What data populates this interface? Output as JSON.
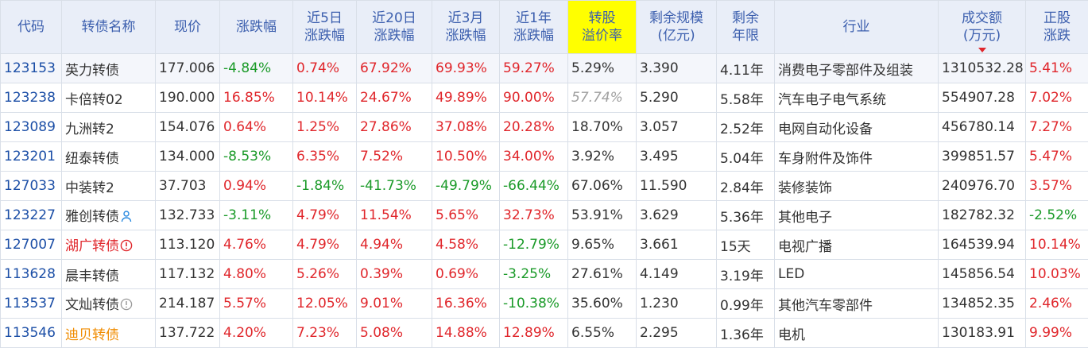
{
  "columns": [
    {
      "key": "code",
      "lines": [
        "代码"
      ]
    },
    {
      "key": "name",
      "lines": [
        "转债名称"
      ]
    },
    {
      "key": "price",
      "lines": [
        "现价"
      ]
    },
    {
      "key": "chg",
      "lines": [
        "涨跌幅"
      ]
    },
    {
      "key": "chg5",
      "lines": [
        "近5日",
        "涨跌幅"
      ]
    },
    {
      "key": "chg20",
      "lines": [
        "近20日",
        "涨跌幅"
      ]
    },
    {
      "key": "chg3m",
      "lines": [
        "近3月",
        "涨跌幅"
      ]
    },
    {
      "key": "chg1y",
      "lines": [
        "近1年",
        "涨跌幅"
      ]
    },
    {
      "key": "premium",
      "lines": [
        "转股",
        "溢价率"
      ],
      "highlight": true
    },
    {
      "key": "scale",
      "lines": [
        "剩余规模",
        "(亿元)"
      ]
    },
    {
      "key": "term",
      "lines": [
        "剩余",
        "年限"
      ]
    },
    {
      "key": "industry",
      "lines": [
        "行业"
      ]
    },
    {
      "key": "volume",
      "lines": [
        "成交额",
        "(万元)"
      ],
      "sorted": "desc"
    },
    {
      "key": "stockchg",
      "lines": [
        "正股",
        "涨跌"
      ]
    }
  ],
  "rows": [
    {
      "code": "123153",
      "name": "英力转债",
      "price": "177.006",
      "chg": "-4.84%",
      "chg5": "0.74%",
      "chg20": "67.92%",
      "chg3m": "69.93%",
      "chg1y": "59.27%",
      "premium": "5.29%",
      "scale": "3.390",
      "term": "4.11年",
      "industry": "消费电子零部件及组装",
      "volume": "1310532.28",
      "stockchg": "5.41%"
    },
    {
      "code": "123238",
      "name": "卡倍转02",
      "price": "190.000",
      "chg": "16.85%",
      "chg5": "10.14%",
      "chg20": "24.67%",
      "chg3m": "49.89%",
      "chg1y": "90.00%",
      "premium": "57.74%",
      "premium_style": "greyital",
      "scale": "5.290",
      "term": "5.58年",
      "industry": "汽车电子电气系统",
      "volume": "554907.28",
      "stockchg": "7.02%"
    },
    {
      "code": "123089",
      "name": "九洲转2",
      "price": "154.076",
      "chg": "0.64%",
      "chg5": "1.25%",
      "chg20": "27.86%",
      "chg3m": "37.08%",
      "chg1y": "20.28%",
      "premium": "18.70%",
      "scale": "3.057",
      "term": "2.52年",
      "industry": "电网自动化设备",
      "volume": "456780.14",
      "stockchg": "7.27%"
    },
    {
      "code": "123201",
      "name": "纽泰转债",
      "price": "134.000",
      "chg": "-8.53%",
      "chg5": "6.35%",
      "chg20": "7.52%",
      "chg3m": "10.50%",
      "chg1y": "34.00%",
      "premium": "3.92%",
      "scale": "3.495",
      "term": "5.04年",
      "industry": "车身附件及饰件",
      "volume": "399851.57",
      "stockchg": "5.47%"
    },
    {
      "code": "127033",
      "name": "中装转2",
      "price": "37.703",
      "chg": "0.94%",
      "chg5": "-1.84%",
      "chg20": "-41.73%",
      "chg3m": "-49.79%",
      "chg1y": "-66.44%",
      "premium": "67.06%",
      "scale": "11.590",
      "term": "2.84年",
      "industry": "装修装饰",
      "volume": "240976.70",
      "stockchg": "3.57%"
    },
    {
      "code": "123227",
      "name": "雅创转债",
      "name_icon": "person-icon",
      "price": "132.733",
      "chg": "-3.11%",
      "chg5": "4.79%",
      "chg20": "11.54%",
      "chg3m": "5.65%",
      "chg1y": "32.73%",
      "premium": "53.91%",
      "scale": "3.629",
      "term": "5.36年",
      "industry": "其他电子",
      "volume": "182782.32",
      "stockchg": "-2.52%"
    },
    {
      "code": "127007",
      "name": "湖广转债",
      "name_color": "red",
      "name_icon": "alert-icon",
      "price": "113.120",
      "chg": "4.76%",
      "chg5": "4.79%",
      "chg20": "4.94%",
      "chg3m": "4.58%",
      "chg1y": "-12.79%",
      "premium": "9.65%",
      "scale": "3.661",
      "term": "15天",
      "industry": "电视广播",
      "volume": "164539.94",
      "stockchg": "10.14%"
    },
    {
      "code": "113628",
      "name": "晨丰转债",
      "price": "117.132",
      "chg": "4.80%",
      "chg5": "5.26%",
      "chg20": "0.39%",
      "chg3m": "0.69%",
      "chg1y": "-3.25%",
      "premium": "27.61%",
      "scale": "4.149",
      "term": "3.19年",
      "industry": "LED",
      "volume": "145856.54",
      "stockchg": "10.03%"
    },
    {
      "code": "113537",
      "name": "文灿转债",
      "name_icon": "info-icon",
      "price": "214.187",
      "chg": "5.57%",
      "chg5": "12.05%",
      "chg20": "9.01%",
      "chg3m": "16.36%",
      "chg1y": "-10.38%",
      "premium": "35.60%",
      "scale": "1.230",
      "term": "0.99年",
      "industry": "其他汽车零部件",
      "volume": "134852.35",
      "stockchg": "2.46%"
    },
    {
      "code": "113546",
      "name": "迪贝转债",
      "name_color": "orange",
      "price": "137.722",
      "chg": "4.20%",
      "chg5": "7.23%",
      "chg20": "5.08%",
      "chg3m": "14.88%",
      "chg1y": "12.89%",
      "premium": "6.55%",
      "scale": "2.295",
      "term": "1.36年",
      "industry": "电机",
      "volume": "130183.91",
      "stockchg": "9.99%"
    }
  ],
  "colors": {
    "up": "#e0262b",
    "down": "#1a9a28",
    "header_text": "#3c5fae",
    "header_bg": "#e9eef8",
    "code": "#1b4ea6"
  }
}
